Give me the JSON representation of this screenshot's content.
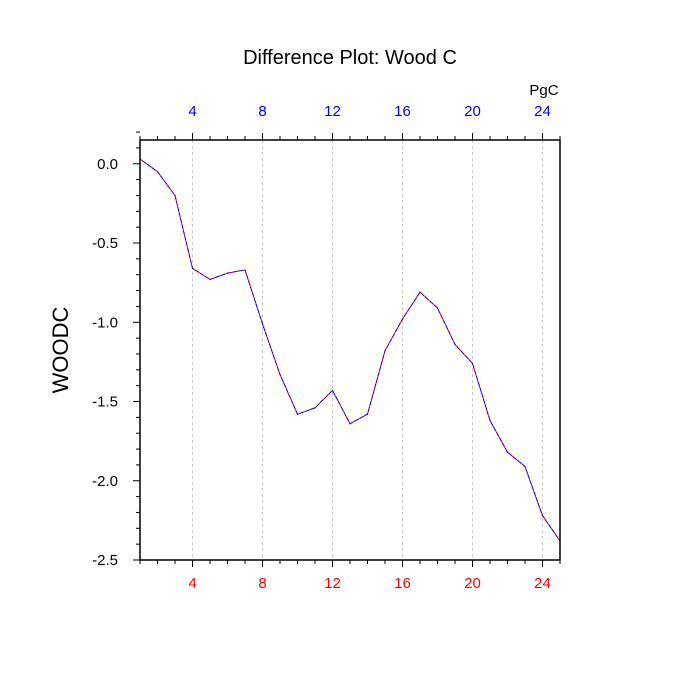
{
  "chart_data": {
    "type": "line",
    "title": "Difference Plot: Wood C",
    "ylabel": "WOODC",
    "units_label": "PgC",
    "xlim": [
      1,
      25
    ],
    "ylim": [
      -2.5,
      0.15
    ],
    "x_ticks": [
      4,
      8,
      12,
      16,
      20,
      24
    ],
    "x_tick_labels": [
      "4",
      "8",
      "12",
      "16",
      "20",
      "24"
    ],
    "y_ticks": [
      0.0,
      -0.5,
      -1.0,
      -1.5,
      -2.0,
      -2.5
    ],
    "y_tick_labels": [
      "0.0",
      "-0.5",
      "-1.0",
      "-1.5",
      "-2.0",
      "-2.5"
    ],
    "grid": "vertical dashed",
    "colors": {
      "bottom_ticks": "#ff0000",
      "top_ticks": "#0000ff",
      "series_a": "#ff0000",
      "series_b": "#0000ff",
      "grid": "#bbbbbb"
    },
    "series": [
      {
        "x": [
          1,
          2,
          3,
          4,
          5,
          6,
          7,
          8,
          9,
          10,
          11,
          12,
          13,
          14,
          15,
          16,
          17,
          18,
          19,
          20,
          21,
          22,
          23,
          24,
          25
        ],
        "values": [
          0.03,
          -0.05,
          -0.2,
          -0.66,
          -0.73,
          -0.69,
          -0.67,
          -1.01,
          -1.33,
          -1.58,
          -1.54,
          -1.43,
          -1.64,
          -1.58,
          -1.18,
          -0.98,
          -0.81,
          -0.91,
          -1.14,
          -1.26,
          -1.62,
          -1.82,
          -1.91,
          -2.22,
          -2.38
        ]
      },
      {
        "x": [
          1,
          2,
          3,
          4,
          5,
          6,
          7,
          8,
          9,
          10,
          11,
          12,
          13,
          14,
          15,
          16,
          17,
          18,
          19,
          20,
          21,
          22,
          23,
          24,
          25
        ],
        "values": [
          0.03,
          -0.05,
          -0.2,
          -0.66,
          -0.73,
          -0.69,
          -0.67,
          -1.01,
          -1.33,
          -1.58,
          -1.54,
          -1.43,
          -1.64,
          -1.58,
          -1.18,
          -0.98,
          -0.81,
          -0.91,
          -1.14,
          -1.26,
          -1.62,
          -1.82,
          -1.91,
          -2.22,
          -2.38
        ]
      }
    ]
  }
}
